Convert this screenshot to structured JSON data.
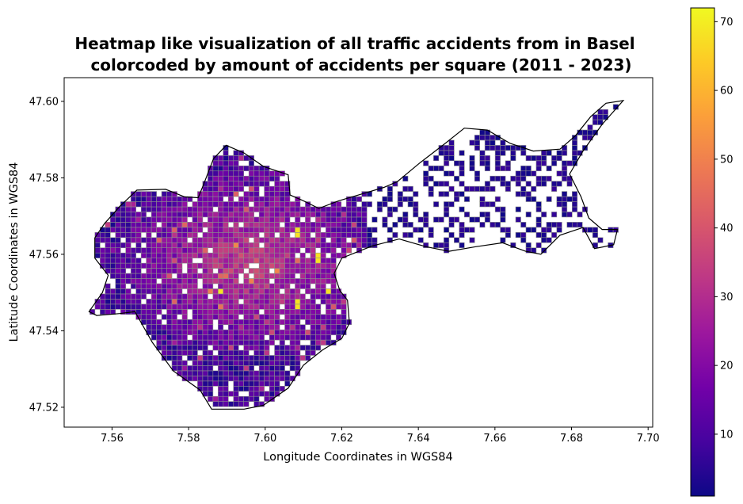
{
  "chart_data": {
    "type": "heatmap",
    "title_line1": "Heatmap like visualization of all traffic accidents from in Basel",
    "title_line2": "colorcoded by amount of accidents per square (2011 - 2023)",
    "xlabel": "Longitude Coordinates in WGS84",
    "ylabel": "Latitude Coordinates in WGS84",
    "xlim": [
      7.5475,
      7.7012
    ],
    "ylim": [
      47.5148,
      47.6062
    ],
    "xticks": [
      "7.56",
      "7.58",
      "7.60",
      "7.62",
      "7.64",
      "7.66",
      "7.68",
      "7.70"
    ],
    "yticks": [
      "47.52",
      "47.54",
      "47.56",
      "47.58",
      "47.60"
    ],
    "colorbar": {
      "colormap": "plasma",
      "min": 1,
      "max": 72,
      "ticks": [
        "10",
        "20",
        "30",
        "40",
        "50",
        "60",
        "70"
      ]
    },
    "grid_cell_size_deg": 0.00134,
    "boundary_outline": [
      [
        7.5555,
        47.5643
      ],
      [
        7.558,
        47.568
      ],
      [
        7.562,
        47.5725
      ],
      [
        7.5665,
        47.5768
      ],
      [
        7.574,
        47.577
      ],
      [
        7.579,
        47.575
      ],
      [
        7.5825,
        47.5748
      ],
      [
        7.5838,
        47.578
      ],
      [
        7.5865,
        47.585
      ],
      [
        7.5898,
        47.5885
      ],
      [
        7.5945,
        47.5865
      ],
      [
        7.5995,
        47.583
      ],
      [
        7.606,
        47.5808
      ],
      [
        7.6065,
        47.5755
      ],
      [
        7.61,
        47.574
      ],
      [
        7.614,
        47.572
      ],
      [
        7.6192,
        47.574
      ],
      [
        7.626,
        47.576
      ],
      [
        7.631,
        47.5775
      ],
      [
        7.6345,
        47.579
      ],
      [
        7.6405,
        47.584
      ],
      [
        7.647,
        47.589
      ],
      [
        7.652,
        47.593
      ],
      [
        7.658,
        47.5925
      ],
      [
        7.664,
        47.589
      ],
      [
        7.67,
        47.587
      ],
      [
        7.677,
        47.5875
      ],
      [
        7.681,
        47.591
      ],
      [
        7.685,
        47.596
      ],
      [
        7.689,
        47.5995
      ],
      [
        7.6935,
        47.6002
      ],
      [
        7.688,
        47.594
      ],
      [
        7.683,
        47.587
      ],
      [
        7.6795,
        47.581
      ],
      [
        7.6825,
        47.575
      ],
      [
        7.6845,
        47.5695
      ],
      [
        7.688,
        47.5665
      ],
      [
        7.692,
        47.5665
      ],
      [
        7.691,
        47.5625
      ],
      [
        7.686,
        47.5615
      ],
      [
        7.683,
        47.567
      ],
      [
        7.677,
        47.565
      ],
      [
        7.672,
        47.56
      ],
      [
        7.668,
        47.5608
      ],
      [
        7.662,
        47.563
      ],
      [
        7.655,
        47.562
      ],
      [
        7.648,
        47.5608
      ],
      [
        7.642,
        47.562
      ],
      [
        7.635,
        47.564
      ],
      [
        7.628,
        47.5622
      ],
      [
        7.625,
        47.561
      ],
      [
        7.62,
        47.559
      ],
      [
        7.618,
        47.555
      ],
      [
        7.6195,
        47.5505
      ],
      [
        7.6215,
        47.548
      ],
      [
        7.622,
        47.542
      ],
      [
        7.62,
        47.538
      ],
      [
        7.615,
        47.535
      ],
      [
        7.61,
        47.531
      ],
      [
        7.606,
        47.525
      ],
      [
        7.5995,
        47.5205
      ],
      [
        7.5945,
        47.5195
      ],
      [
        7.586,
        47.5195
      ],
      [
        7.583,
        47.5245
      ],
      [
        7.576,
        47.5295
      ],
      [
        7.5705,
        47.537
      ],
      [
        7.566,
        47.545
      ],
      [
        7.562,
        47.5445
      ],
      [
        7.556,
        47.544
      ],
      [
        7.554,
        47.545
      ],
      [
        7.5575,
        47.55
      ],
      [
        7.559,
        47.5545
      ],
      [
        7.5555,
        47.559
      ]
    ]
  }
}
